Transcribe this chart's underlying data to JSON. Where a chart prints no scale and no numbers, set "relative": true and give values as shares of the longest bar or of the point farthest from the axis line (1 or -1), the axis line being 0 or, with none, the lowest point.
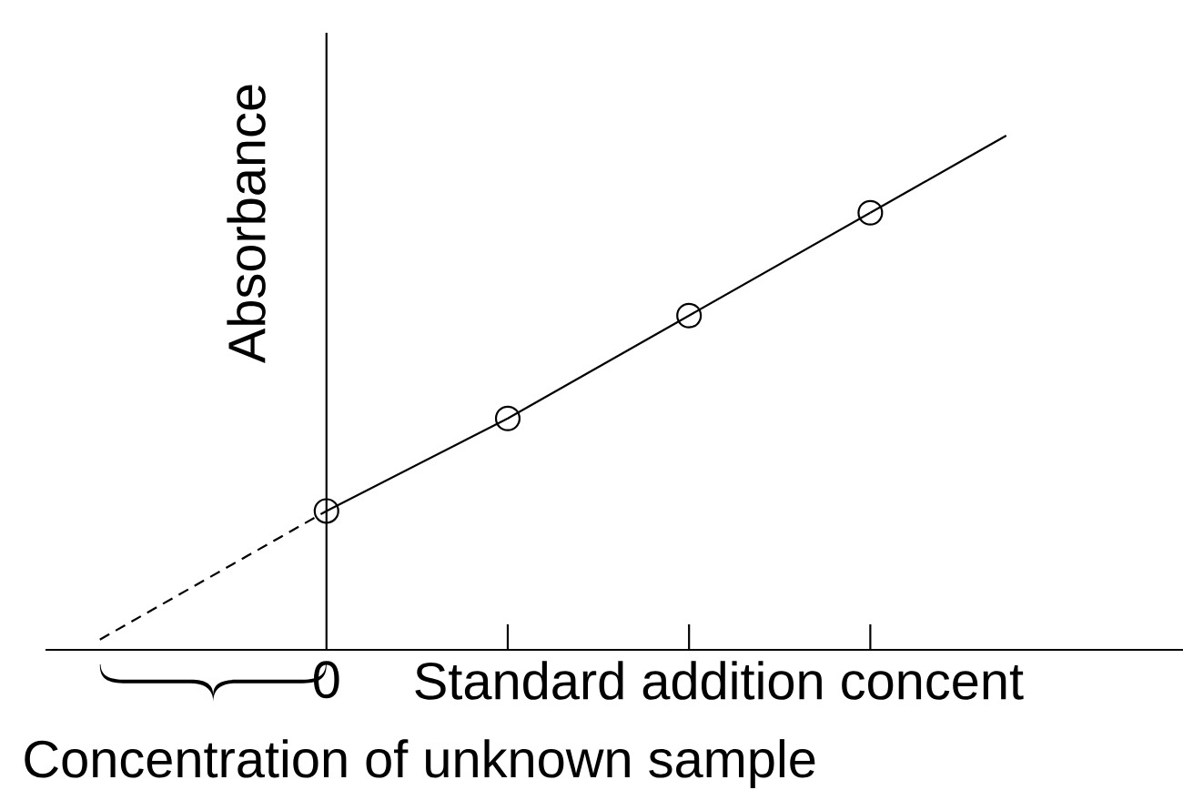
{
  "chart_data": {
    "type": "line",
    "relative": true,
    "xlabel": "Standard addition concent",
    "ylabel": "Absorbance",
    "categories": [
      null,
      null,
      null,
      null,
      null,
      null,
      null,
      null,
      null,
      null,
      null,
      null,
      null,
      null,
      null,
      null,
      null,
      null,
      null,
      null,
      null
    ],
    "series": [
      {
        "type": "line",
        "color": "#000000",
        "marker": "circle",
        "line_style": "solid",
        "values": [
          null,
          null,
          null,
          null,
          null,
          0.27,
          null,
          null,
          null,
          0.45,
          null,
          null,
          null,
          0.65,
          null,
          null,
          null,
          0.85,
          null,
          null,
          null
        ]
      },
      {
        "type": "line",
        "color": "#000000",
        "line_style": "dashed",
        "values": [
          0.02,
          0.07,
          0.12,
          0.17,
          0.22,
          0.27,
          null,
          null,
          null,
          null,
          null,
          null,
          null,
          null,
          null,
          null,
          null,
          null,
          null,
          null,
          null
        ]
      },
      {
        "type": "line",
        "color": "#000000",
        "line_style": "solid",
        "values": [
          null,
          null,
          null,
          null,
          null,
          null,
          null,
          null,
          null,
          null,
          null,
          null,
          null,
          null,
          null,
          null,
          null,
          0.85,
          0.9,
          0.95,
          1
        ]
      }
    ],
    "annotations": [
      "0",
      "Concentration of unknown sample"
    ]
  }
}
